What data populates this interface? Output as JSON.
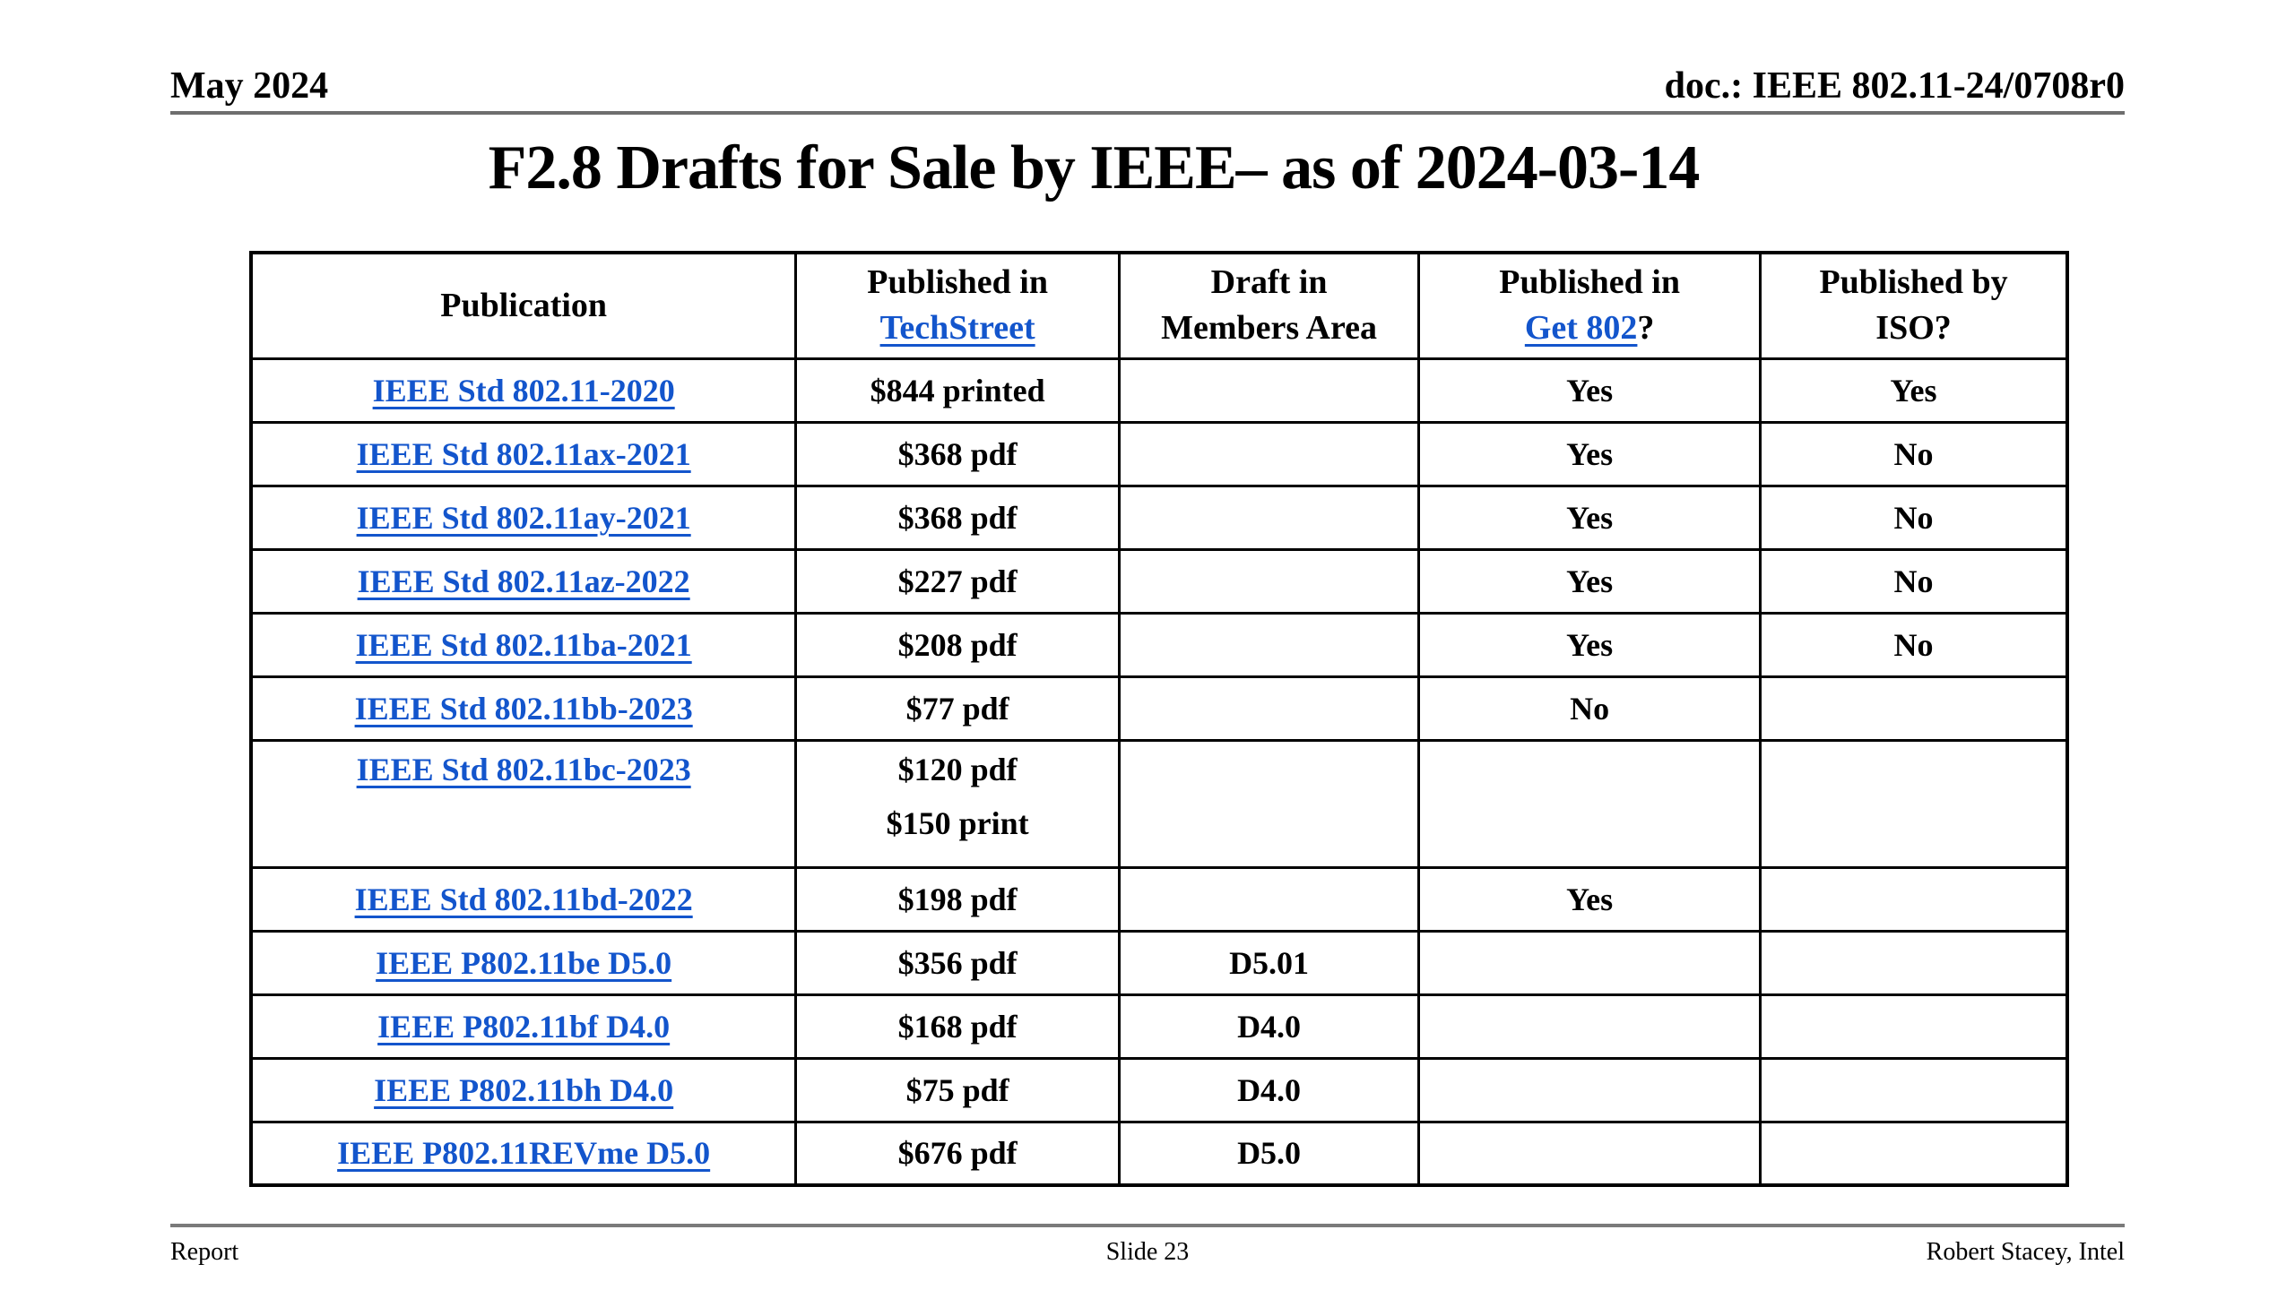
{
  "header": {
    "date": "May 2024",
    "doc": "doc.: IEEE 802.11-24/0708r0"
  },
  "title": "F2.8 Drafts for Sale by IEEE– as of 2024-03-14",
  "table": {
    "header": {
      "publication": "Publication",
      "techstreet_line1": "Published in",
      "techstreet_link": "TechStreet",
      "draft_line1": "Draft in",
      "draft_line2": "Members Area",
      "get802_line1": "Published in",
      "get802_link": "Get 802",
      "get802_suffix": "?",
      "iso_line1": "Published by",
      "iso_line2": "ISO?"
    },
    "rows": [
      {
        "publication": "IEEE Std 802.11-2020",
        "techstreet": "$844 printed",
        "draft": "",
        "get802": "Yes",
        "iso": "Yes"
      },
      {
        "publication": "IEEE Std 802.11ax-2021",
        "techstreet": "$368 pdf",
        "draft": "",
        "get802": "Yes",
        "iso": "No"
      },
      {
        "publication": "IEEE Std 802.11ay-2021",
        "techstreet": "$368 pdf",
        "draft": "",
        "get802": "Yes",
        "iso": "No"
      },
      {
        "publication": "IEEE Std 802.11az-2022",
        "techstreet": "$227 pdf",
        "draft": "",
        "get802": "Yes",
        "iso": "No"
      },
      {
        "publication": "IEEE Std 802.11ba-2021",
        "techstreet": "$208 pdf",
        "draft": "",
        "get802": "Yes",
        "iso": "No"
      },
      {
        "publication": "IEEE Std 802.11bb-2023",
        "techstreet": "$77 pdf",
        "draft": "",
        "get802": "No",
        "iso": ""
      },
      {
        "publication": "IEEE Std 802.11bc-2023",
        "techstreet": "$120 pdf",
        "techstreet2": "$150 print",
        "draft": "",
        "get802": "",
        "iso": ""
      },
      {
        "publication": "IEEE Std 802.11bd-2022",
        "techstreet": "$198 pdf",
        "draft": "",
        "get802": "Yes",
        "iso": ""
      },
      {
        "publication": "IEEE P802.11be D5.0",
        "techstreet": "$356 pdf",
        "draft": "D5.01",
        "get802": "",
        "iso": ""
      },
      {
        "publication": "IEEE P802.11bf D4.0",
        "techstreet": "$168 pdf",
        "draft": "D4.0",
        "get802": "",
        "iso": ""
      },
      {
        "publication": "IEEE P802.11bh D4.0",
        "techstreet": "$75 pdf",
        "draft": "D4.0",
        "get802": "",
        "iso": ""
      },
      {
        "publication": "IEEE P802.11REVme D5.0",
        "techstreet": "$676 pdf",
        "draft": "D5.0",
        "get802": "",
        "iso": ""
      }
    ]
  },
  "footer": {
    "left": "Report",
    "center": "Slide 23",
    "right": "Robert Stacey, Intel"
  },
  "colors": {
    "link": "#1355CC",
    "rule": "#6e6e6e"
  }
}
